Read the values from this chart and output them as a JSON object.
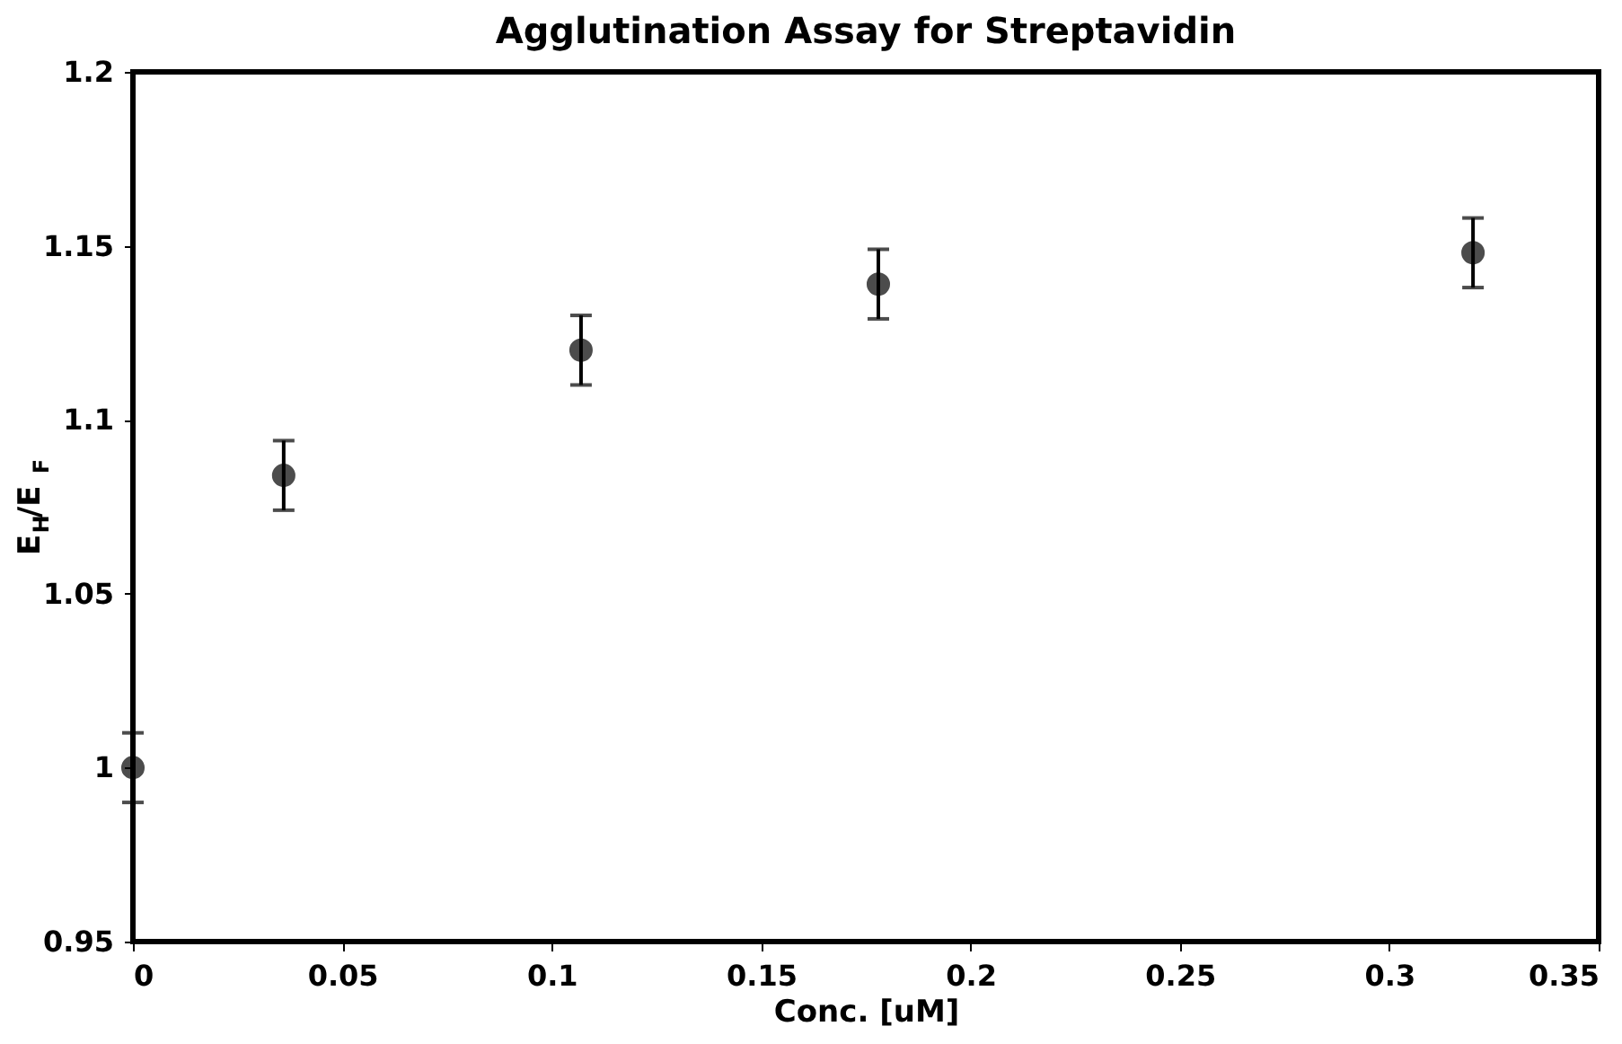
{
  "chart_data": {
    "type": "scatter",
    "title": "Agglutination Assay for Streptavidin",
    "xlabel": "Conc. [uM]",
    "ylabel": "E$_{H}$/E$_{F}$",
    "x": [
      0,
      0.036,
      0.107,
      0.178,
      0.32
    ],
    "values": [
      1.0,
      1.084,
      1.12,
      1.139,
      1.148
    ],
    "errors": [
      0.01,
      0.01,
      0.01,
      0.01,
      0.01
    ],
    "color": "#000000",
    "marker": "circle",
    "xlim": [
      0,
      0.35
    ],
    "xticks": [
      0,
      0.05,
      0.1,
      0.15,
      0.2,
      0.25,
      0.3,
      0.35
    ],
    "ylim": [
      0.95,
      1.2
    ],
    "yticks": [
      0.95,
      1,
      1.05,
      1.1,
      1.15,
      1.2
    ],
    "grid": false
  }
}
